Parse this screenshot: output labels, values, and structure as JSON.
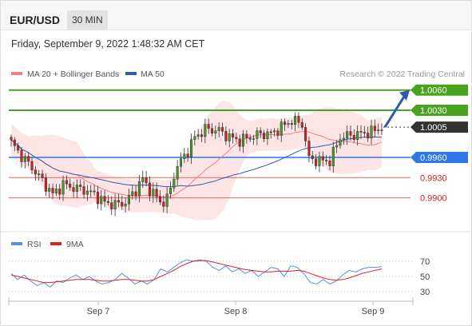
{
  "header": {
    "pair": "EUR/USD",
    "timeframe": "30 MIN"
  },
  "datetime": "Friday, September 9, 2022 1:48:32 AM CET",
  "copyright": "Research © 2022 Trading Central",
  "colors": {
    "ma20_bollinger": "#f08080",
    "ma50": "#2e5fa8",
    "bands_fill": "#fde0e0",
    "resistance": "#4aa31e",
    "current": "#333333",
    "pivot": "#2f76e8",
    "support": "#e06666",
    "arrow": "#2a5ca8",
    "rsi": "#5b8de0",
    "rsi_ma": "#e02020",
    "candle_up": "#4a9a2a",
    "candle_down": "#d02020"
  },
  "chart_data": [
    {
      "type": "candlestick",
      "title": "EUR/USD",
      "timeframe": "30 MIN",
      "legend": [
        "MA 20 + Bollinger Bands",
        "MA 50"
      ],
      "x_ticks": [
        "Sep 7",
        "Sep 8",
        "Sep 9"
      ],
      "levels": [
        {
          "label": "1.0060",
          "value": 1.006,
          "kind": "resistance"
        },
        {
          "label": "1.0030",
          "value": 1.003,
          "kind": "resistance"
        },
        {
          "label": "1.0005",
          "value": 1.0005,
          "kind": "current"
        },
        {
          "label": "0.9960",
          "value": 0.996,
          "kind": "pivot"
        },
        {
          "label": "0.9930",
          "value": 0.993,
          "kind": "support"
        },
        {
          "label": "0.9900",
          "value": 0.99,
          "kind": "support"
        }
      ],
      "price_path": [
        {
          "t": 0,
          "close": 0.9982
        },
        {
          "t": 3,
          "close": 0.9962
        },
        {
          "t": 6,
          "close": 0.9945
        },
        {
          "t": 9,
          "close": 0.9925
        },
        {
          "t": 12,
          "close": 0.9905
        },
        {
          "t": 15,
          "close": 0.992
        },
        {
          "t": 18,
          "close": 0.9915
        },
        {
          "t": 21,
          "close": 0.9912
        },
        {
          "t": 24,
          "close": 0.9905
        },
        {
          "t": 27,
          "close": 0.9893
        },
        {
          "t": 30,
          "close": 0.989
        },
        {
          "t": 33,
          "close": 0.9893
        },
        {
          "t": 36,
          "close": 0.9912
        },
        {
          "t": 38,
          "close": 0.9928
        },
        {
          "t": 40,
          "close": 0.9912
        },
        {
          "t": 42,
          "close": 0.99
        },
        {
          "t": 44,
          "close": 0.9892
        },
        {
          "t": 45,
          "close": 0.99
        },
        {
          "t": 46,
          "close": 0.9912
        },
        {
          "t": 47,
          "close": 0.9935
        },
        {
          "t": 49,
          "close": 0.9955
        },
        {
          "t": 51,
          "close": 0.997
        },
        {
          "t": 53,
          "close": 0.999
        },
        {
          "t": 56,
          "close": 1.0002
        },
        {
          "t": 60,
          "close": 1.0
        },
        {
          "t": 63,
          "close": 0.999
        },
        {
          "t": 66,
          "close": 0.9985
        },
        {
          "t": 69,
          "close": 0.999
        },
        {
          "t": 72,
          "close": 0.9995
        },
        {
          "t": 75,
          "close": 0.9995
        },
        {
          "t": 78,
          "close": 1.0005
        },
        {
          "t": 81,
          "close": 1.0015
        },
        {
          "t": 84,
          "close": 1.001
        },
        {
          "t": 86,
          "close": 0.9958
        },
        {
          "t": 89,
          "close": 0.9955
        },
        {
          "t": 92,
          "close": 0.9955
        },
        {
          "t": 95,
          "close": 0.999
        },
        {
          "t": 98,
          "close": 0.9993
        },
        {
          "t": 101,
          "close": 0.9995
        },
        {
          "t": 104,
          "close": 0.9998
        },
        {
          "t": 107,
          "close": 1.0005
        }
      ],
      "projection": {
        "from": 1.0005,
        "to": 1.006
      }
    },
    {
      "type": "line",
      "title": "RSI",
      "legend": [
        "RSI",
        "9MA"
      ],
      "y_ticks": [
        70,
        50,
        30
      ],
      "ylim": [
        20,
        80
      ],
      "series": [
        {
          "name": "RSI",
          "values": [
            54,
            46,
            52,
            44,
            38,
            42,
            36,
            44,
            42,
            48,
            52,
            46,
            50,
            44,
            40,
            42,
            46,
            54,
            48,
            40,
            44,
            40,
            46,
            60,
            56,
            62,
            68,
            72,
            70,
            72,
            70,
            62,
            58,
            64,
            56,
            60,
            54,
            58,
            50,
            56,
            62,
            60,
            50,
            64,
            62,
            54,
            42,
            40,
            46,
            40,
            44,
            52,
            58,
            56,
            60,
            62,
            62,
            63
          ]
        },
        {
          "name": "9MA",
          "values": [
            52,
            50,
            48,
            46,
            44,
            42,
            42,
            43,
            44,
            45,
            46,
            46,
            46,
            45,
            44,
            44,
            45,
            46,
            46,
            45,
            44,
            44,
            46,
            50,
            54,
            58,
            63,
            67,
            70,
            71,
            71,
            69,
            67,
            65,
            63,
            61,
            59,
            58,
            57,
            56,
            56,
            57,
            57,
            57,
            58,
            57,
            54,
            51,
            48,
            46,
            45,
            46,
            48,
            51,
            54,
            56,
            58,
            60
          ]
        }
      ]
    }
  ]
}
